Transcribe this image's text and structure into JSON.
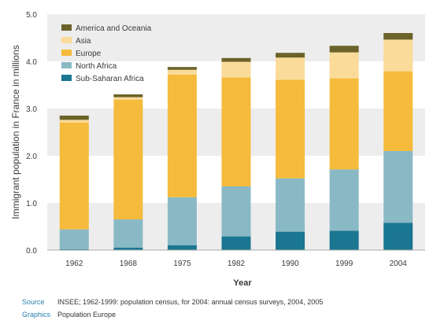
{
  "chart_data": {
    "type": "bar",
    "stacked": true,
    "categories": [
      "1962",
      "1968",
      "1975",
      "1982",
      "1990",
      "1999",
      "2004"
    ],
    "series": [
      {
        "name": "Sub-Saharan Africa",
        "color": "#1a7691",
        "values": [
          0.02,
          0.05,
          0.1,
          0.29,
          0.39,
          0.41,
          0.58
        ]
      },
      {
        "name": "North Africa",
        "color": "#8ab9c6",
        "values": [
          0.42,
          0.6,
          1.02,
          1.06,
          1.13,
          1.3,
          1.52
        ]
      },
      {
        "name": "Europe",
        "color": "#f6bb3c",
        "values": [
          2.26,
          2.54,
          2.6,
          2.31,
          2.09,
          1.93,
          1.69
        ]
      },
      {
        "name": "Asia",
        "color": "#fadb99",
        "values": [
          0.06,
          0.05,
          0.1,
          0.33,
          0.47,
          0.55,
          0.67
        ]
      },
      {
        "name": "America and Oceania",
        "color": "#6b6329",
        "values": [
          0.09,
          0.06,
          0.06,
          0.08,
          0.1,
          0.14,
          0.14
        ]
      }
    ],
    "legend_order": [
      "America and Oceania",
      "Asia",
      "Europe",
      "North Africa",
      "Sub-Saharan Africa"
    ],
    "legend_placement": "top-left",
    "xlabel": "Year",
    "ylabel": "Immigrant population in France in millions",
    "ylim": [
      0,
      5
    ],
    "yticks": [
      "0.0",
      "1.0",
      "2.0",
      "3.0",
      "4.0",
      "5.0"
    ],
    "grid": "alternating horizontal bands"
  },
  "source": {
    "source_label": "Source",
    "source_text": "INSEE; 1962-1999: population census, for 2004: annual census surveys, 2004, 2005",
    "graphics_label": "Graphics",
    "graphics_text": "Population Europe"
  }
}
